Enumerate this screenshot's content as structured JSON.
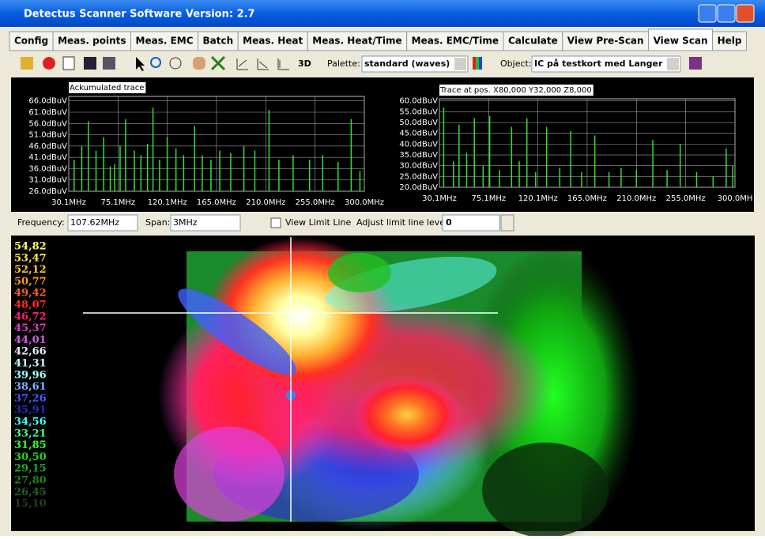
{
  "window": {
    "title": "Detectus Scanner Software Version: 2.7"
  },
  "tabs": [
    "Config",
    "Meas. points",
    "Meas. EMC",
    "Batch",
    "Meas. Heat",
    "Meas. Heat/Time",
    "Meas. EMC/Time",
    "Calculate",
    "View Pre-Scan",
    "View Scan",
    "Help"
  ],
  "toolbar": {
    "button_3d": "3D",
    "palette_label": "Palette:",
    "palette_value": "standard (waves)",
    "object_label": "Object:",
    "object_value": "IC på testkort med Langer"
  },
  "charts": [
    {
      "type": "stem",
      "title": "Ackumulated trace",
      "color": "#30e030",
      "x": [
        35,
        42,
        48,
        55,
        62,
        68,
        72,
        77,
        82,
        90,
        96,
        102,
        107,
        113,
        120,
        128,
        135,
        145,
        152,
        160,
        168,
        178,
        190,
        200,
        213,
        222,
        235,
        250,
        262,
        276,
        288,
        296
      ],
      "values": [
        40,
        46,
        57,
        44,
        50,
        37,
        38,
        46,
        58,
        44,
        42,
        47,
        63,
        40,
        50,
        45,
        42,
        55,
        42,
        40,
        44,
        43,
        46,
        44,
        62,
        40,
        42,
        40,
        42,
        39,
        58,
        35
      ],
      "xlim": [
        30.1,
        300
      ],
      "ylim": [
        26,
        68
      ],
      "xticks": [
        {
          "value": 30.1,
          "label": "30.1MHz"
        },
        {
          "value": 75.1,
          "label": "75.1MHz"
        },
        {
          "value": 120.1,
          "label": "120.1MHz"
        },
        {
          "value": 165,
          "label": "165.0MHz"
        },
        {
          "value": 210,
          "label": "210.0MHz"
        },
        {
          "value": 255,
          "label": "255.0MHz"
        },
        {
          "value": 300,
          "label": "300.0MHz"
        }
      ],
      "yticks": [
        {
          "value": 26,
          "label": "26.0dBuV"
        },
        {
          "value": 31,
          "label": "31.0dBuV"
        },
        {
          "value": 36,
          "label": "36.0dBuV"
        },
        {
          "value": 41,
          "label": "41.0dBuV"
        },
        {
          "value": 46,
          "label": "46.0dBuV"
        },
        {
          "value": 51,
          "label": "51.0dBuV"
        },
        {
          "value": 56,
          "label": "56.0dBuV"
        },
        {
          "value": 61,
          "label": "61.0dBuV"
        },
        {
          "value": 66,
          "label": "66.0dBuV"
        }
      ],
      "grid": true
    },
    {
      "type": "stem",
      "title": "Trace at pos. X80,000 Y32,000 Z8,000",
      "color": "#30e030",
      "x": [
        34,
        43,
        48,
        55,
        62,
        70,
        76,
        85,
        96,
        103,
        110,
        118,
        128,
        140,
        150,
        160,
        172,
        185,
        196,
        210,
        225,
        238,
        250,
        265,
        280,
        292,
        298
      ],
      "values": [
        57,
        32,
        49,
        36,
        52,
        30,
        53,
        28,
        48,
        32,
        52,
        27,
        48,
        29,
        46,
        27,
        44,
        27,
        29,
        28,
        42,
        28,
        40,
        27,
        25,
        38,
        30
      ],
      "xlim": [
        30.1,
        300
      ],
      "ylim": [
        20,
        61
      ],
      "xticks": [
        {
          "value": 30.1,
          "label": "30.1MHz"
        },
        {
          "value": 75.1,
          "label": "75.1MHz"
        },
        {
          "value": 120.1,
          "label": "120.1MHz"
        },
        {
          "value": 165,
          "label": "165.0MHz"
        },
        {
          "value": 210,
          "label": "210.0MHz"
        },
        {
          "value": 255,
          "label": "255.0MHz"
        },
        {
          "value": 300,
          "label": "300.0MH"
        }
      ],
      "yticks": [
        {
          "value": 20,
          "label": "20.0dBuV"
        },
        {
          "value": 25,
          "label": "25.0dBuV"
        },
        {
          "value": 30,
          "label": "30.0dBuV"
        },
        {
          "value": 35,
          "label": "35.0dBuV"
        },
        {
          "value": 40,
          "label": "40.0dBuV"
        },
        {
          "value": 45,
          "label": "45.0dBuV"
        },
        {
          "value": 50,
          "label": "50.0dBuV"
        },
        {
          "value": 55,
          "label": "55.0dBuV"
        },
        {
          "value": 60,
          "label": "60.0dBuV"
        }
      ],
      "grid": true
    }
  ],
  "controls": {
    "frequency_label": "Frequency:",
    "frequency_value": "107.62MHz",
    "span_label": "Span:",
    "span_value": "3MHz",
    "limit_line_label": "View Limit Line",
    "adjust_label": "Adjust limit line level:",
    "adjust_value": "0"
  },
  "legend": {
    "labels": [
      "54,82",
      "53,47",
      "52,12",
      "50,77",
      "49,42",
      "48,07",
      "46,72",
      "45,37",
      "44,01",
      "42,66",
      "41,31",
      "39,96",
      "38,61",
      "37,26",
      "35,91",
      "34,56",
      "33,21",
      "31,85",
      "30,50",
      "29,15",
      "27,80",
      "26,45",
      "15,10"
    ],
    "colors": [
      "#ffff70",
      "#ffe848",
      "#ffc830",
      "#ff9a20",
      "#ff6020",
      "#ff2a20",
      "#ff2070",
      "#e040c0",
      "#d060e0",
      "#e8e8ff",
      "#c8ffff",
      "#a0ffff",
      "#80b0ff",
      "#4060ff",
      "#2030c0",
      "#40ffff",
      "#40ff90",
      "#30ff30",
      "#20d820",
      "#20a820",
      "#208020",
      "#206020",
      "#204020"
    ]
  }
}
